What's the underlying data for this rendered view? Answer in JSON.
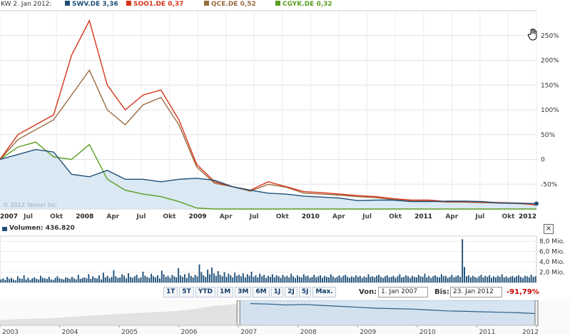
{
  "header": {
    "date_label": "KW 2. Jan 2012:",
    "series": [
      {
        "label": "SWV.DE 3,36",
        "color": "#1e4f78"
      },
      {
        "label": "SOO1.DE 0,37",
        "color": "#d63319"
      },
      {
        "label": "QCE.DE 0,52",
        "color": "#9a6b3e"
      },
      {
        "label": "CGYK.DE 0,32",
        "color": "#5a9e1e"
      }
    ]
  },
  "chart_data": [
    {
      "type": "line",
      "title": "",
      "ylabel": "",
      "y_unit": "%",
      "ylim": [
        -100,
        300
      ],
      "grid": true,
      "y_ticks": [
        "250%",
        "200%",
        "150%",
        "100%",
        "50%",
        "0",
        "-50%"
      ],
      "x_tick_labels": [
        "2007",
        "Jul",
        "Okt",
        "2008",
        "Apr",
        "Jul",
        "Okt",
        "2009",
        "Apr",
        "Jul",
        "Okt",
        "2010",
        "Apr",
        "Jul",
        "Okt",
        "2011",
        "Apr",
        "Jul",
        "Okt",
        "2012"
      ],
      "x": [
        "2007-01",
        "2007-03",
        "2007-05",
        "2007-07",
        "2007-09",
        "2007-11",
        "2008-01",
        "2008-03",
        "2008-05",
        "2008-07",
        "2008-09",
        "2008-11",
        "2009-01",
        "2009-03",
        "2009-05",
        "2009-07",
        "2009-09",
        "2009-11",
        "2010-01",
        "2010-03",
        "2010-05",
        "2010-07",
        "2010-09",
        "2010-11",
        "2011-01",
        "2011-03",
        "2011-05",
        "2011-07",
        "2011-09",
        "2011-11",
        "2012-01"
      ],
      "series": [
        {
          "name": "SWV.DE 3,36",
          "color": "#1e4f78",
          "area": true,
          "values": [
            0,
            10,
            20,
            15,
            -30,
            -35,
            -22,
            -40,
            -40,
            -45,
            -40,
            -38,
            -42,
            -55,
            -62,
            -68,
            -70,
            -74,
            -76,
            -78,
            -83,
            -82,
            -82,
            -85,
            -85,
            -84,
            -84,
            -85,
            -88,
            -88,
            -89
          ]
        },
        {
          "name": "SOO1.DE 0,37",
          "color": "#d63319",
          "values": [
            0,
            50,
            70,
            90,
            210,
            280,
            150,
            100,
            130,
            140,
            80,
            -10,
            -45,
            -55,
            -62,
            -45,
            -55,
            -65,
            -67,
            -70,
            -73,
            -75,
            -79,
            -82,
            -82,
            -85,
            -85,
            -86,
            -87,
            -88,
            -92
          ]
        },
        {
          "name": "QCE.DE 0,52",
          "color": "#9a6b3e",
          "values": [
            0,
            40,
            60,
            80,
            130,
            180,
            100,
            70,
            110,
            125,
            70,
            -15,
            -48,
            -55,
            -64,
            -50,
            -56,
            -68,
            -70,
            -72,
            -75,
            -77,
            -81,
            -84,
            -84,
            -86,
            -86,
            -87,
            -88,
            -89,
            -91
          ]
        },
        {
          "name": "CGYK.DE 0,32",
          "color": "#5a9e1e",
          "values": [
            0,
            25,
            35,
            5,
            0,
            30,
            -40,
            -62,
            -70,
            -75,
            -85,
            -98,
            -100,
            -100,
            -100,
            -100,
            -100,
            -100,
            -100,
            -100,
            -100,
            -100,
            -100,
            -100,
            -100,
            -100,
            -100,
            -100,
            -100,
            -100,
            -100
          ]
        }
      ]
    },
    {
      "type": "bar",
      "title": "Volumen: 436.820",
      "y_ticks": [
        "8,0 Mio.",
        "6,0 Mio.",
        "4,0 Mio.",
        "2,0 Mio."
      ],
      "ylim": [
        0,
        9
      ],
      "unit": "Mio.",
      "values": [
        0.6,
        0.8,
        0.5,
        1.1,
        0.7,
        0.9,
        0.6,
        0.4,
        1.2,
        0.8,
        0.7,
        1.4,
        0.6,
        0.9,
        0.5,
        0.8,
        1.0,
        0.7,
        0.6,
        1.3,
        0.9,
        0.8,
        0.7,
        1.1,
        0.6,
        0.5,
        0.9,
        1.2,
        0.8,
        0.7,
        0.6,
        1.0,
        0.9,
        0.7,
        1.1,
        0.8,
        0.6,
        1.5,
        0.7,
        0.9,
        1.0,
        0.8,
        1.6,
        0.7,
        1.2,
        0.9,
        0.8,
        1.4,
        0.6,
        1.9,
        1.0,
        1.3,
        0.8,
        1.1,
        2.4,
        1.2,
        0.9,
        1.0,
        1.6,
        1.3,
        0.8,
        1.8,
        1.1,
        0.9,
        1.2,
        1.5,
        0.8,
        1.0,
        2.1,
        1.3,
        1.1,
        0.9,
        1.7,
        1.2,
        1.0,
        1.4,
        0.8,
        2.3,
        1.6,
        1.1,
        1.3,
        0.9,
        1.5,
        1.2,
        1.0,
        2.8,
        1.4,
        1.1,
        1.6,
        0.9,
        1.8,
        1.3,
        1.0,
        1.5,
        1.2,
        3.5,
        2.0,
        1.4,
        1.1,
        2.5,
        1.6,
        2.9,
        1.8,
        1.3,
        2.2,
        1.5,
        1.2,
        2.0,
        1.1,
        1.7,
        1.4,
        1.0,
        1.9,
        1.3,
        1.5,
        1.2,
        1.8,
        1.0,
        1.6,
        1.3,
        2.1,
        1.1,
        1.4,
        1.0,
        1.7,
        1.2,
        1.5,
        0.9,
        1.3,
        1.1,
        1.6,
        1.0,
        1.4,
        1.2,
        0.9,
        1.5,
        1.1,
        1.3,
        1.0,
        1.7,
        1.2,
        0.9,
        1.4,
        1.1,
        1.0,
        1.6,
        1.2,
        1.3,
        0.9,
        1.1,
        1.5,
        1.0,
        1.2,
        1.4,
        0.9,
        1.3,
        1.1,
        1.0,
        1.6,
        1.2,
        0.9,
        1.1,
        1.4,
        1.0,
        1.3,
        1.5,
        1.1,
        0.9,
        1.2,
        1.0,
        1.4,
        1.1,
        1.3,
        0.9,
        1.2,
        1.0,
        1.6,
        1.1,
        1.2,
        1.0,
        1.3,
        1.5,
        1.1,
        0.9,
        1.2,
        1.4,
        1.0,
        1.1,
        1.3,
        0.9,
        1.2,
        1.6,
        1.0,
        1.1,
        1.4,
        1.2,
        0.9,
        1.3,
        1.1,
        1.0,
        1.5,
        1.2,
        1.1,
        1.7,
        1.0,
        1.3,
        0.9,
        1.2,
        1.4,
        1.1,
        1.0,
        1.6,
        1.2,
        1.3,
        0.9,
        1.1,
        1.5,
        1.0,
        1.2,
        1.4,
        1.1,
        8.4,
        3.0,
        1.2,
        1.4,
        1.0,
        1.3,
        1.1,
        0.9,
        1.2,
        1.5,
        1.0,
        1.3,
        1.1,
        1.4,
        0.9,
        1.2,
        1.0,
        1.3,
        1.1,
        1.6,
        1.0,
        1.2,
        0.9,
        1.1,
        1.3,
        1.0,
        1.2,
        1.4,
        1.1,
        0.9,
        1.3,
        1.2,
        1.0,
        1.5,
        1.1,
        1.2
      ]
    },
    {
      "type": "area",
      "title": "",
      "x_tick_labels": [
        "2003",
        "2004",
        "2005",
        "2006",
        "2007",
        "2008",
        "2009",
        "2010",
        "2011",
        "2012"
      ],
      "selection": [
        "2007",
        "2012"
      ],
      "values": [
        20,
        24,
        26,
        28,
        34,
        38,
        44,
        48,
        52,
        56,
        60,
        70,
        82,
        88,
        92,
        90,
        86,
        88,
        84,
        80,
        76,
        72,
        70,
        68,
        64,
        60,
        58,
        56,
        54,
        52,
        48
      ]
    }
  ],
  "volume": {
    "label": "Volumen: 436.820",
    "close_label": "×"
  },
  "controls": {
    "range_buttons": [
      "1T",
      "5T",
      "YTD",
      "1M",
      "3M",
      "6M",
      "1J",
      "2J",
      "5J",
      "Max."
    ],
    "from_label": "Von:",
    "from_value": "1. Jan 2007",
    "to_label": "Bis:",
    "to_value": "23. Jan 2012",
    "change": "-91,79%"
  },
  "watermark": "© 2012 Yahoo! Inc.",
  "icons": {
    "cursor": "hand-cursor-icon"
  }
}
